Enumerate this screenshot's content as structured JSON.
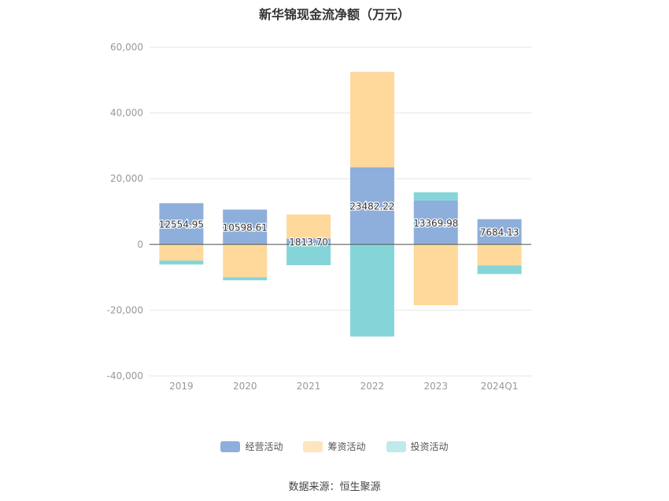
{
  "chart_data": {
    "type": "bar",
    "stacked": true,
    "title": "新华锦现金流净额（万元）",
    "categories": [
      "2019",
      "2020",
      "2021",
      "2022",
      "2023",
      "2024Q1"
    ],
    "ylim": [
      -40000,
      60000
    ],
    "yticks": [
      60000,
      40000,
      20000,
      0,
      -20000,
      -40000
    ],
    "ytick_labels": [
      "60,000",
      "40,000",
      "20,000",
      "0",
      "-20,000",
      "-40,000"
    ],
    "grid": true,
    "legend_position": "bottom",
    "series": [
      {
        "name": "经营活动",
        "color": "#8eaedb",
        "values": [
          12554.95,
          10598.61,
          1813.7,
          23482.22,
          13369.98,
          7684.13
        ],
        "labels": [
          "12554.95",
          "10598.61",
          "1813.70",
          "23482.22",
          "13369.98",
          "7684.13"
        ]
      },
      {
        "name": "筹资活动",
        "color": "#ffd89b",
        "values": [
          -4900,
          -10000,
          7300,
          29000,
          -18500,
          -6400
        ]
      },
      {
        "name": "投资活动",
        "color": "#85d5d8",
        "values": [
          -1200,
          -900,
          -6300,
          -28000,
          2500,
          -2600
        ]
      }
    ]
  },
  "legend_swatch_colors": [
    "#8eaedb",
    "#ffe5bd",
    "#bfe9ea"
  ],
  "source": "数据来源：恒生聚源"
}
